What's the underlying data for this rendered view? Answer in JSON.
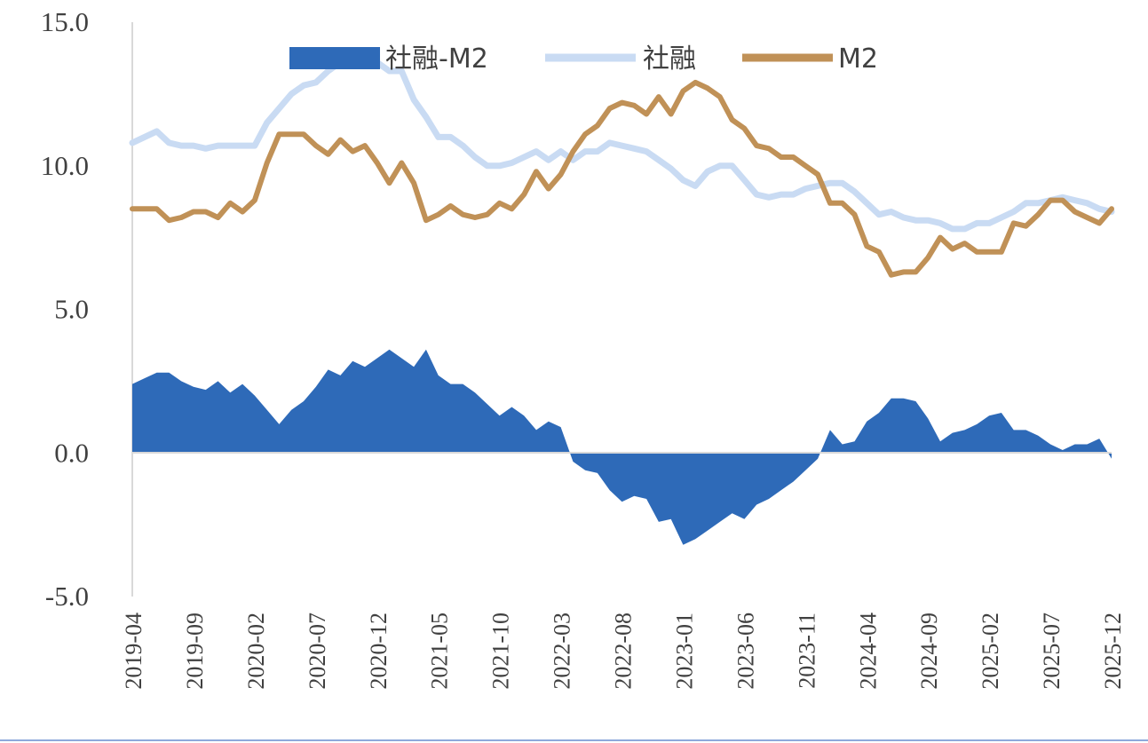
{
  "chart_data": {
    "type": "area+line",
    "title": "",
    "xlabel": "",
    "ylabel": "",
    "ylim": [
      -5,
      15
    ],
    "yticks": [
      -5,
      0,
      5,
      10,
      15
    ],
    "ytick_labels": [
      "-5.0",
      "0.0",
      "5.0",
      "10.0",
      "15.0"
    ],
    "xtick_labels": [
      "2019-04",
      "2019-09",
      "2020-02",
      "2020-07",
      "2020-12",
      "2021-05",
      "2021-10",
      "2022-03",
      "2022-08",
      "2023-01",
      "2023-06",
      "2023-11",
      "2024-04",
      "2024-09",
      "2025-02",
      "2025-07",
      "2025-12"
    ],
    "x_start": "2019-04",
    "x_end": "2025-12",
    "legend_position": "top",
    "series": [
      {
        "name": "社融-M2",
        "kind": "area",
        "color": "#2E6AB8",
        "values": [
          2.4,
          2.6,
          2.8,
          2.8,
          2.5,
          2.3,
          2.2,
          2.5,
          2.1,
          2.4,
          2.0,
          1.5,
          1.0,
          1.5,
          1.8,
          2.3,
          2.9,
          2.7,
          3.2,
          3.0,
          3.3,
          3.6,
          3.3,
          3.0,
          3.6,
          2.7,
          2.4,
          2.4,
          2.1,
          1.7,
          1.3,
          1.6,
          1.3,
          0.8,
          1.1,
          0.9,
          -0.3,
          -0.6,
          -0.7,
          -1.3,
          -1.7,
          -1.5,
          -1.6,
          -2.4,
          -2.3,
          -3.2,
          -3.0,
          -2.7,
          -2.4,
          -2.1,
          -2.3,
          -1.8,
          -1.6,
          -1.3,
          -1.0,
          -0.6,
          -0.2,
          0.8,
          0.3,
          0.4,
          1.1,
          1.4,
          1.9,
          1.9,
          1.8,
          1.2,
          0.4,
          0.7,
          0.8,
          1.0,
          1.3,
          1.4,
          0.8,
          0.8,
          0.6,
          0.3,
          0.1,
          0.3,
          0.3,
          0.5,
          -0.2
        ]
      },
      {
        "name": "社融",
        "kind": "line",
        "color": "#C9DBF3",
        "values": [
          10.8,
          11.0,
          11.2,
          10.8,
          10.7,
          10.7,
          10.6,
          10.7,
          10.7,
          10.7,
          10.7,
          11.5,
          12.0,
          12.5,
          12.8,
          12.9,
          13.3,
          13.6,
          13.7,
          13.7,
          13.6,
          13.3,
          13.3,
          12.3,
          11.7,
          11.0,
          11.0,
          10.7,
          10.3,
          10.0,
          10.0,
          10.1,
          10.3,
          10.5,
          10.2,
          10.5,
          10.2,
          10.5,
          10.5,
          10.8,
          10.7,
          10.6,
          10.5,
          10.2,
          9.9,
          9.5,
          9.3,
          9.8,
          10.0,
          10.0,
          9.5,
          9.0,
          8.9,
          9.0,
          9.0,
          9.2,
          9.3,
          9.4,
          9.4,
          9.1,
          8.7,
          8.3,
          8.4,
          8.2,
          8.1,
          8.1,
          8.0,
          7.8,
          7.8,
          8.0,
          8.0,
          8.2,
          8.4,
          8.7,
          8.7,
          8.8,
          8.9,
          8.8,
          8.7,
          8.5,
          8.4
        ]
      },
      {
        "name": "M2",
        "kind": "line",
        "color": "#C09157",
        "values": [
          8.5,
          8.5,
          8.5,
          8.1,
          8.2,
          8.4,
          8.4,
          8.2,
          8.7,
          8.4,
          8.8,
          10.1,
          11.1,
          11.1,
          11.1,
          10.7,
          10.4,
          10.9,
          10.5,
          10.7,
          10.1,
          9.4,
          10.1,
          9.4,
          8.1,
          8.3,
          8.6,
          8.3,
          8.2,
          8.3,
          8.7,
          8.5,
          9.0,
          9.8,
          9.2,
          9.7,
          10.5,
          11.1,
          11.4,
          12.0,
          12.2,
          12.1,
          11.8,
          12.4,
          11.8,
          12.6,
          12.9,
          12.7,
          12.4,
          11.6,
          11.3,
          10.7,
          10.6,
          10.3,
          10.3,
          10.0,
          9.7,
          8.7,
          8.7,
          8.3,
          7.2,
          7.0,
          6.2,
          6.3,
          6.3,
          6.8,
          7.5,
          7.1,
          7.3,
          7.0,
          7.0,
          7.0,
          8.0,
          7.9,
          8.3,
          8.8,
          8.8,
          8.4,
          8.2,
          8.0,
          8.5
        ]
      }
    ]
  }
}
